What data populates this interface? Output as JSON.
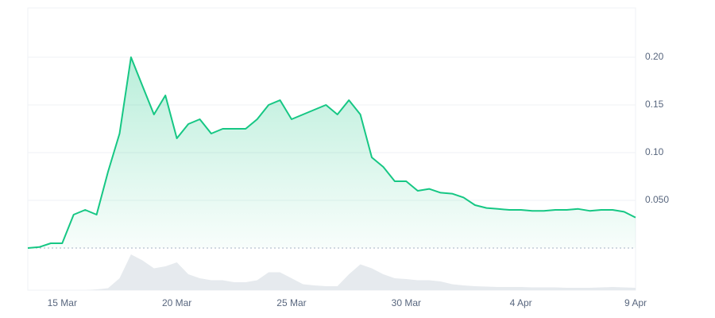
{
  "chart_data": {
    "type": "line",
    "categories": [
      null,
      null,
      null,
      "15 Mar",
      null,
      null,
      null,
      null,
      null,
      null,
      null,
      null,
      null,
      "20 Mar",
      null,
      null,
      null,
      null,
      null,
      null,
      null,
      null,
      null,
      "25 Mar",
      null,
      null,
      null,
      null,
      null,
      null,
      null,
      null,
      null,
      "30 Mar",
      null,
      null,
      null,
      null,
      null,
      null,
      null,
      null,
      null,
      "4 Apr",
      null,
      null,
      null,
      null,
      null,
      null,
      null,
      null,
      null,
      "9 Apr"
    ],
    "series": [
      {
        "color": "#16c784",
        "values": [
          0.0,
          0.001,
          0.005,
          0.005,
          0.035,
          0.04,
          0.035,
          0.08,
          0.12,
          0.2,
          0.17,
          0.14,
          0.16,
          0.115,
          0.13,
          0.135,
          0.12,
          0.125,
          0.125,
          0.125,
          0.135,
          0.15,
          0.155,
          0.135,
          0.14,
          0.145,
          0.15,
          0.14,
          0.155,
          0.14,
          0.095,
          0.085,
          0.07,
          0.07,
          0.06,
          0.062,
          0.058,
          0.057,
          0.053,
          0.045,
          0.042,
          0.041,
          0.04,
          0.04,
          0.039,
          0.039,
          0.04,
          0.04,
          0.041,
          0.039,
          0.04,
          0.04,
          0.038,
          0.032
        ]
      },
      {
        "color": "#e6eaee",
        "axis": "y2",
        "values": [
          0,
          0,
          0,
          0,
          0,
          0,
          0.02,
          0.05,
          0.3,
          0.9,
          0.75,
          0.55,
          0.6,
          0.7,
          0.4,
          0.3,
          0.25,
          0.25,
          0.2,
          0.2,
          0.25,
          0.45,
          0.45,
          0.3,
          0.15,
          0.12,
          0.1,
          0.1,
          0.4,
          0.65,
          0.55,
          0.4,
          0.3,
          0.28,
          0.25,
          0.25,
          0.22,
          0.15,
          0.12,
          0.1,
          0.09,
          0.08,
          0.08,
          0.08,
          0.07,
          0.07,
          0.07,
          0.06,
          0.06,
          0.06,
          0.07,
          0.08,
          0.07,
          0.06
        ]
      }
    ],
    "ylim": [
      0,
      0.25
    ],
    "yticks": [
      {
        "value": 0.05,
        "label": "0.050"
      },
      {
        "value": 0.1,
        "label": "0.10"
      },
      {
        "value": 0.15,
        "label": "0.15"
      },
      {
        "value": 0.2,
        "label": "0.20"
      }
    ],
    "y2lim": [
      0,
      1
    ],
    "baseline": 0,
    "grid": true
  }
}
